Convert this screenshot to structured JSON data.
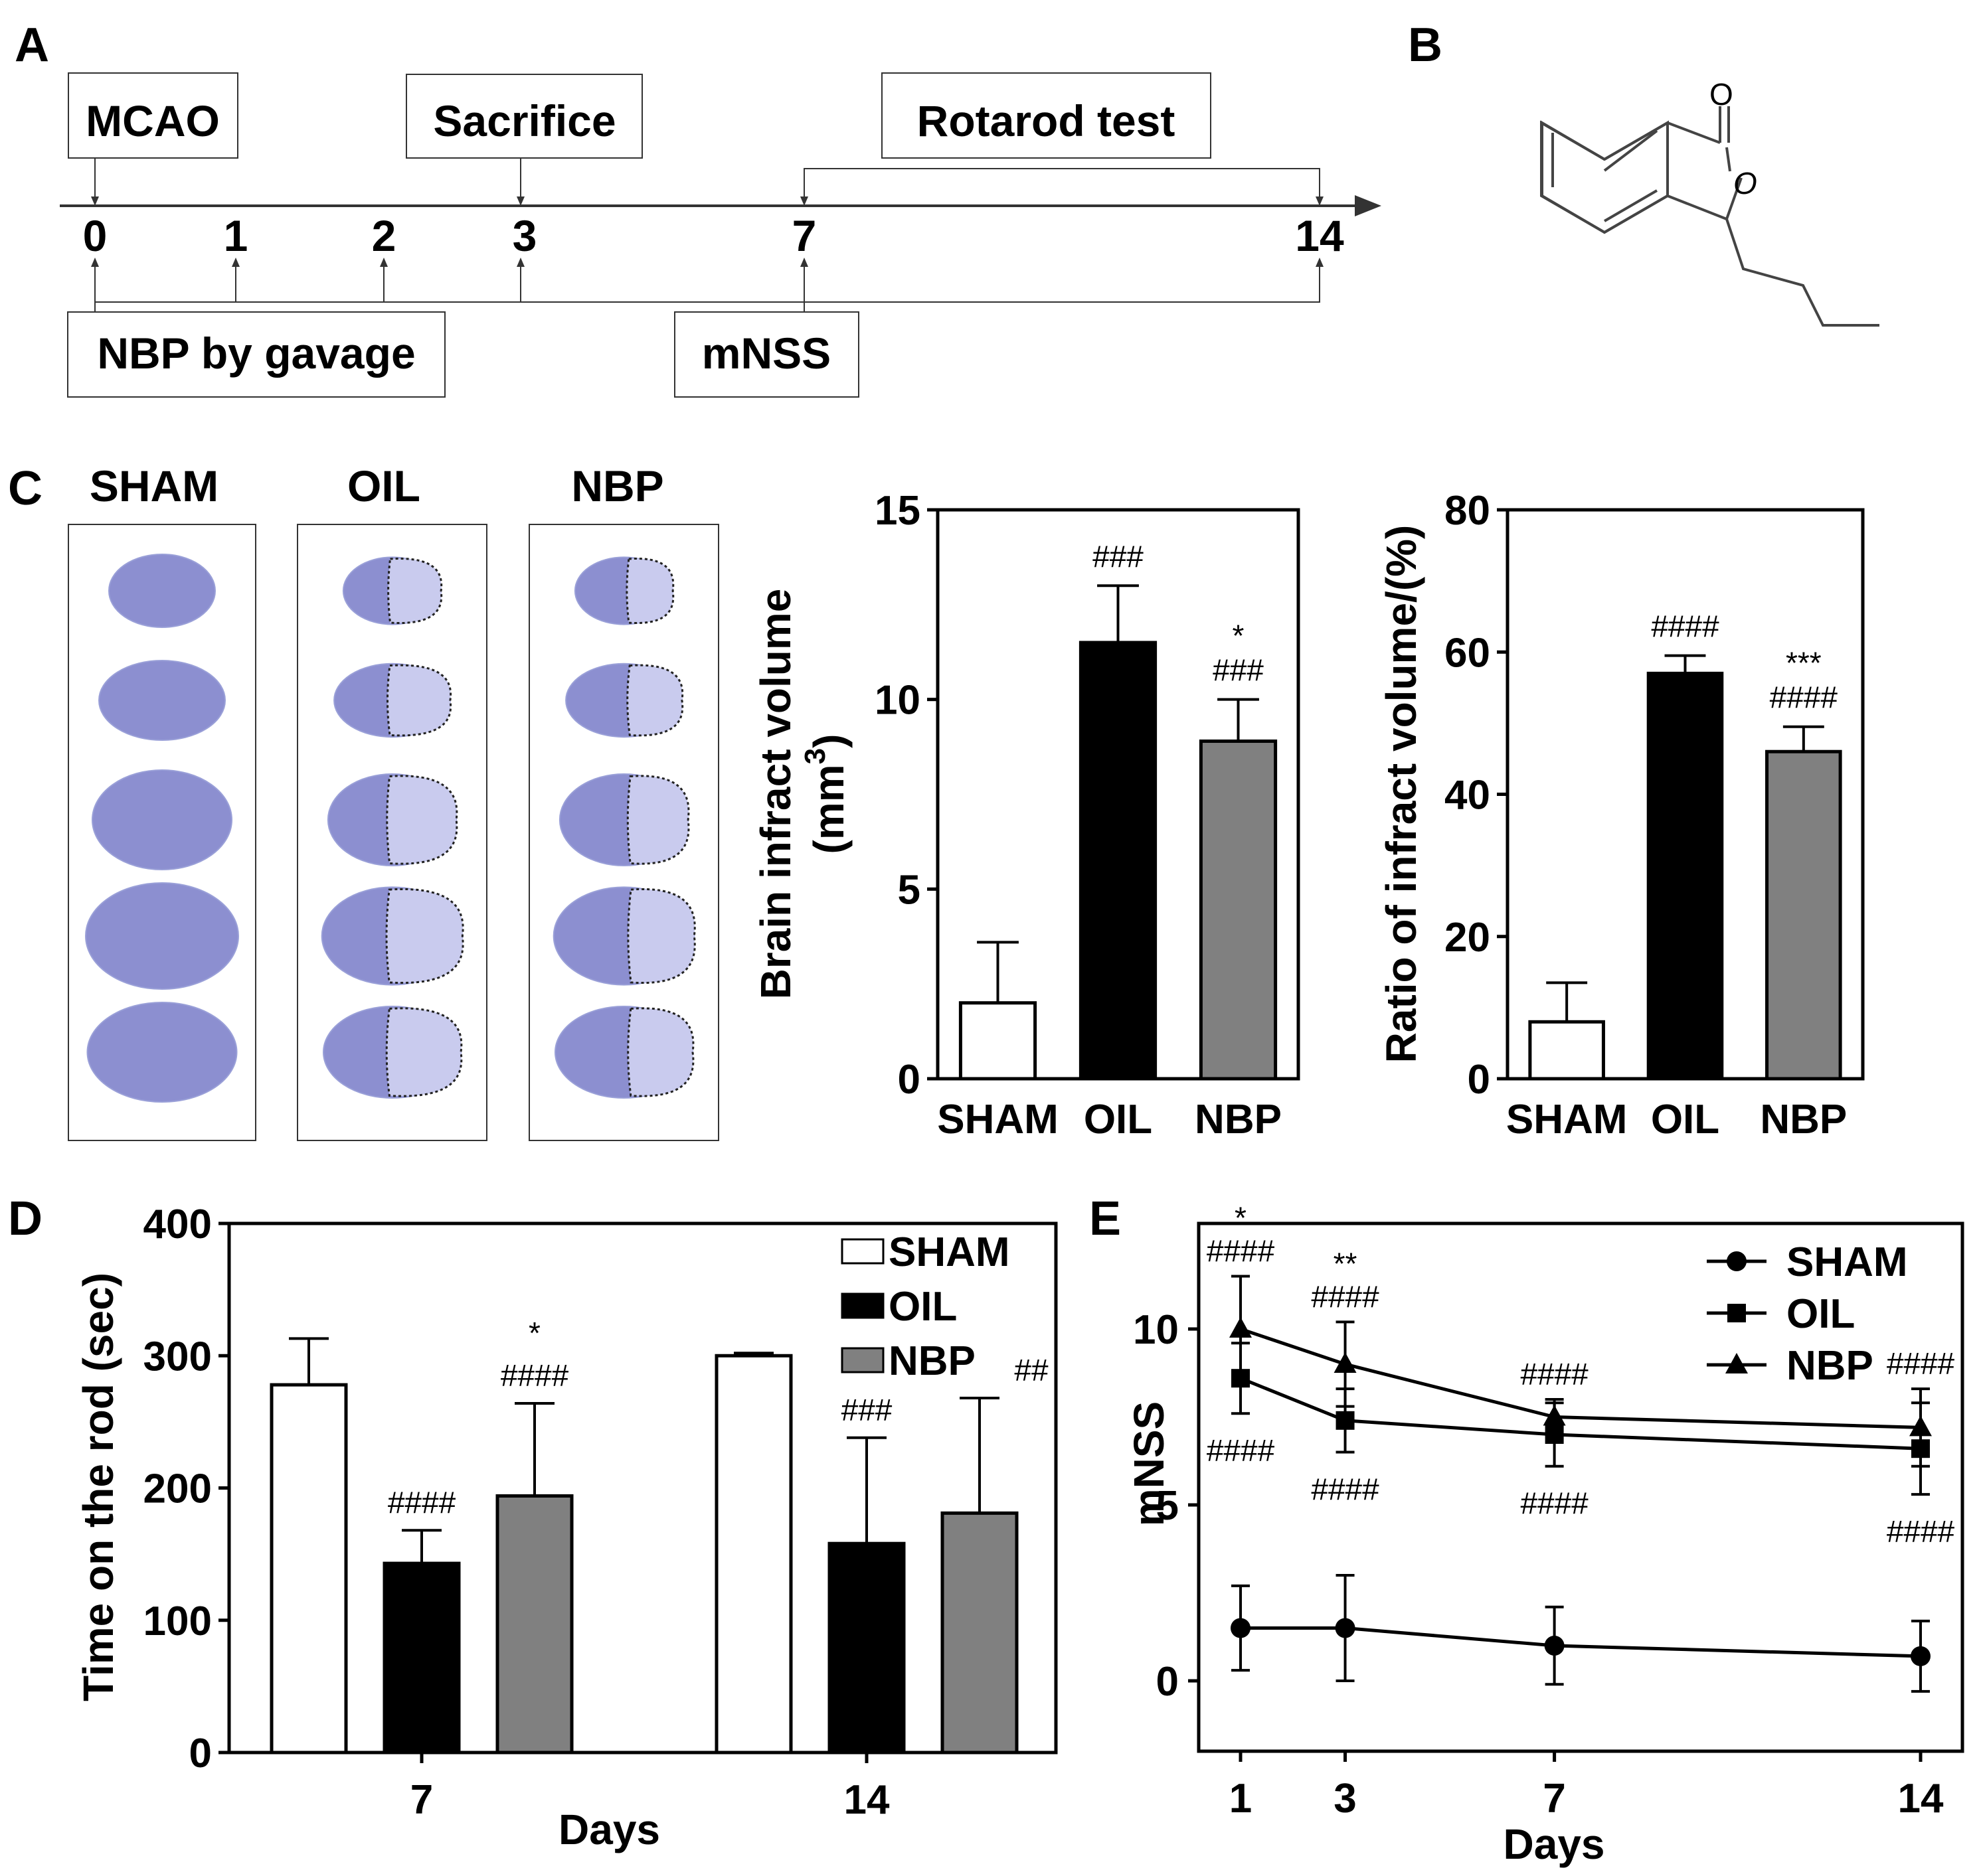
{
  "panels": {
    "A": "A",
    "B": "B",
    "C": "C",
    "D": "D",
    "E": "E"
  },
  "timeline": {
    "box_labels": {
      "mcao": "MCAO",
      "sacrifice": "Sacrifice",
      "rotarod": "Rotarod test",
      "nbp": "NBP by gavage",
      "mnss": "mNSS"
    },
    "ticks": [
      "0",
      "1",
      "2",
      "3",
      "7",
      "14"
    ]
  },
  "molecule": {
    "atom_o1": "O",
    "atom_o2": "O"
  },
  "slices": {
    "group_labels": [
      "SHAM",
      "OIL",
      "NBP"
    ]
  },
  "colors": {
    "sham": "#ffffff",
    "oil": "#000000",
    "nbp": "#808080",
    "slice_fill": "#8c8fd0",
    "slice_light": "#c9cbee"
  },
  "chart_data": [
    {
      "id": "C1",
      "type": "bar",
      "categories": [
        "SHAM",
        "OIL",
        "NBP"
      ],
      "values": [
        2.0,
        11.5,
        8.9
      ],
      "errors": [
        1.6,
        1.5,
        1.1
      ],
      "significance": [
        "",
        "###",
        "*\n###"
      ],
      "ylabel": "Brain infract volume (mm3)",
      "ylabel_main": "Brain infract volume",
      "ylabel_unit_open": "(mm",
      "ylabel_unit_sup": "3",
      "ylabel_unit_close": ")",
      "ylim": [
        0,
        15
      ],
      "yticks": [
        "0",
        "5",
        "10",
        "15"
      ]
    },
    {
      "id": "C2",
      "type": "bar",
      "categories": [
        "SHAM",
        "OIL",
        "NBP"
      ],
      "values": [
        8,
        57,
        46
      ],
      "errors": [
        5.5,
        2.5,
        3.5
      ],
      "significance": [
        "",
        "####",
        "***\n####"
      ],
      "ylabel": "Ratio of infract volume/(%)",
      "ylim": [
        0,
        80
      ],
      "yticks": [
        "0",
        "20",
        "40",
        "60",
        "80"
      ]
    },
    {
      "id": "D",
      "type": "bar",
      "categories": [
        "7",
        "14"
      ],
      "series": [
        {
          "name": "SHAM",
          "values": [
            278,
            300
          ],
          "errors": [
            35,
            2
          ]
        },
        {
          "name": "OIL",
          "values": [
            143,
            158
          ],
          "errors": [
            25,
            80
          ]
        },
        {
          "name": "NBP",
          "values": [
            194,
            181
          ],
          "errors": [
            70,
            87
          ]
        }
      ],
      "significance": {
        "OIL": [
          "####",
          "###"
        ],
        "NBP": [
          "*\n####",
          "##"
        ]
      },
      "xlabel": "Days",
      "ylabel": "Time on the rod (sec)",
      "ylim": [
        0,
        400
      ],
      "yticks": [
        "0",
        "100",
        "200",
        "300",
        "400"
      ],
      "legend": "top-right"
    },
    {
      "id": "E",
      "type": "line",
      "x": [
        1,
        3,
        7,
        14
      ],
      "xticks": [
        "1",
        "3",
        "7",
        "14"
      ],
      "series": [
        {
          "name": "SHAM",
          "marker": "circle",
          "values": [
            1.5,
            1.5,
            1.0,
            0.7
          ],
          "errors": [
            1.2,
            1.5,
            1.1,
            1.0
          ]
        },
        {
          "name": "OIL",
          "marker": "square",
          "values": [
            8.6,
            7.4,
            7.0,
            6.6
          ],
          "errors": [
            1.0,
            0.9,
            0.9,
            1.3
          ]
        },
        {
          "name": "NBP",
          "marker": "triangle",
          "values": [
            10.0,
            9.0,
            7.5,
            7.2
          ],
          "errors": [
            1.5,
            1.2,
            0.5,
            1.1
          ]
        }
      ],
      "significance": {
        "NBP": [
          "*\n####",
          "**\n####",
          "####",
          "####"
        ],
        "OIL": [
          "####",
          "####",
          "####",
          "####"
        ]
      },
      "xlabel": "Days",
      "ylabel": "mNSS",
      "xlim": [
        0.2,
        14.8
      ],
      "ylim": [
        -2,
        13
      ],
      "yticks": [
        "0",
        "5",
        "10"
      ],
      "legend": "top-right"
    }
  ]
}
